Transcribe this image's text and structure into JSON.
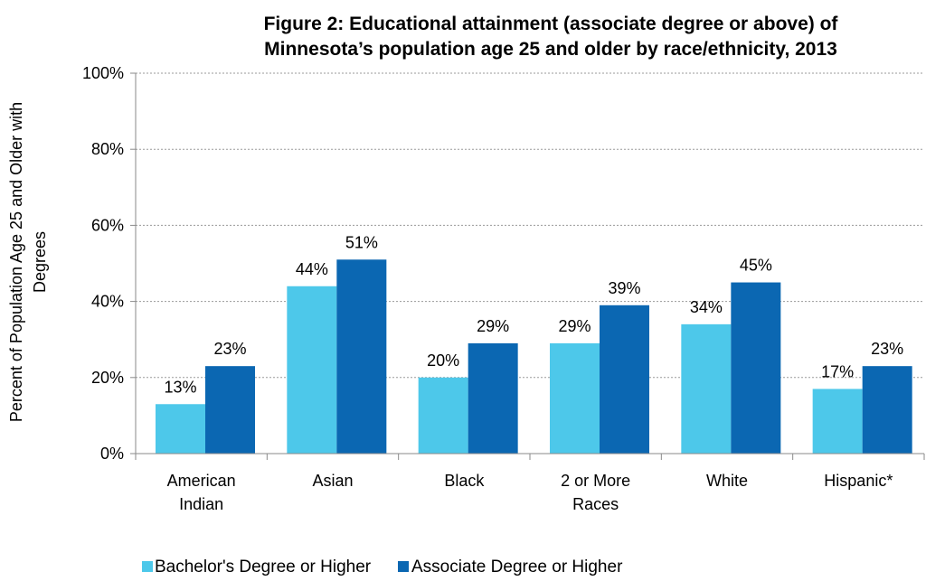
{
  "chart_data": {
    "type": "bar",
    "title_lines": [
      "Figure 2: Educational attainment (associate degree or above) of",
      "Minnesota’s population age 25 and older by race/ethnicity, 2013"
    ],
    "ylabel_lines": [
      "Percent of Population Age 25 and Older with",
      "Degrees"
    ],
    "ylim": [
      0,
      100
    ],
    "yticks": [
      "0%",
      "20%",
      "40%",
      "60%",
      "80%",
      "100%"
    ],
    "grid": true,
    "legend_position": "bottom",
    "categories": [
      [
        "American",
        "Indian"
      ],
      [
        "Asian"
      ],
      [
        "Black"
      ],
      [
        "2 or More",
        "Races"
      ],
      [
        "White"
      ],
      [
        "Hispanic*"
      ]
    ],
    "series": [
      {
        "name": "Bachelor's Degree or Higher",
        "color": "#4dc8ea",
        "values": [
          13,
          44,
          20,
          29,
          34,
          17
        ],
        "labels": [
          "13%",
          "44%",
          "20%",
          "29%",
          "34%",
          "17%"
        ]
      },
      {
        "name": "Associate Degree or Higher",
        "color": "#0b67b2",
        "values": [
          23,
          51,
          29,
          39,
          45,
          23
        ],
        "labels": [
          "23%",
          "51%",
          "29%",
          "39%",
          "45%",
          "23%"
        ]
      }
    ]
  }
}
